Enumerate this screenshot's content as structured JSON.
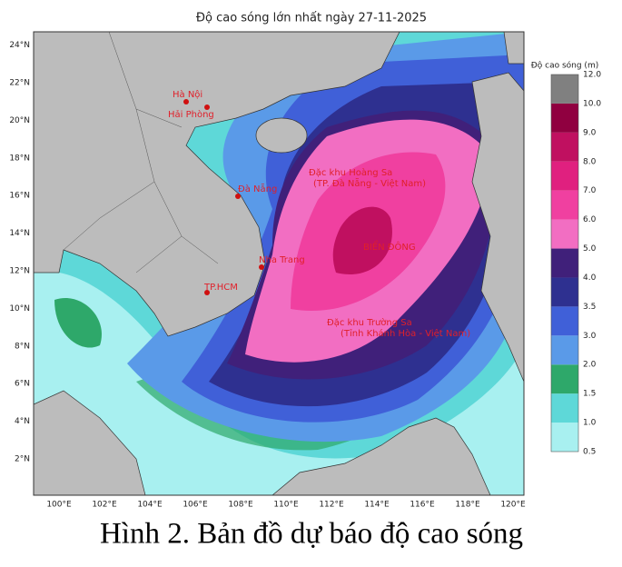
{
  "title": "Độ cao sóng lớn nhất ngày 27-11-2025",
  "lat_ticks": [
    "2°N",
    "4°N",
    "6°N",
    "8°N",
    "10°N",
    "12°N",
    "14°N",
    "16°N",
    "18°N",
    "20°N",
    "22°N",
    "24°N"
  ],
  "lon_ticks": [
    "100°E",
    "102°E",
    "104°E",
    "106°E",
    "108°E",
    "110°E",
    "112°E",
    "114°E",
    "116°E",
    "118°E",
    "120°E"
  ],
  "colorbar": {
    "title": "Độ cao sóng (m)",
    "labels": [
      "0.5",
      "1.0",
      "1.5",
      "2.0",
      "3.0",
      "3.5",
      "4.0",
      "5.0",
      "6.0",
      "7.0",
      "8.0",
      "9.0",
      "10.0",
      "12.0"
    ],
    "colors": [
      "#a8f0f0",
      "#5ed8d8",
      "#2ea86a",
      "#5a9ae8",
      "#4060d8",
      "#2e3090",
      "#40207a",
      "#f26ec2",
      "#f040a0",
      "#e0207f",
      "#c01060",
      "#900040",
      "#808080"
    ]
  },
  "places": [
    "Hà Nội",
    "Hải Phòng",
    "Đặc khu Hoàng Sa",
    "(TP. Đà Nẵng - Việt Nam)",
    "Đà Nẵng",
    "Nha Trang",
    "TP.HCM",
    "BIỂN ĐÔNG",
    "Đặc khu Trường Sa",
    "(Tỉnh Khánh Hòa - Việt Nam)"
  ],
  "caption": "Hình 2. Bản đồ dự báo độ cao sóng"
}
